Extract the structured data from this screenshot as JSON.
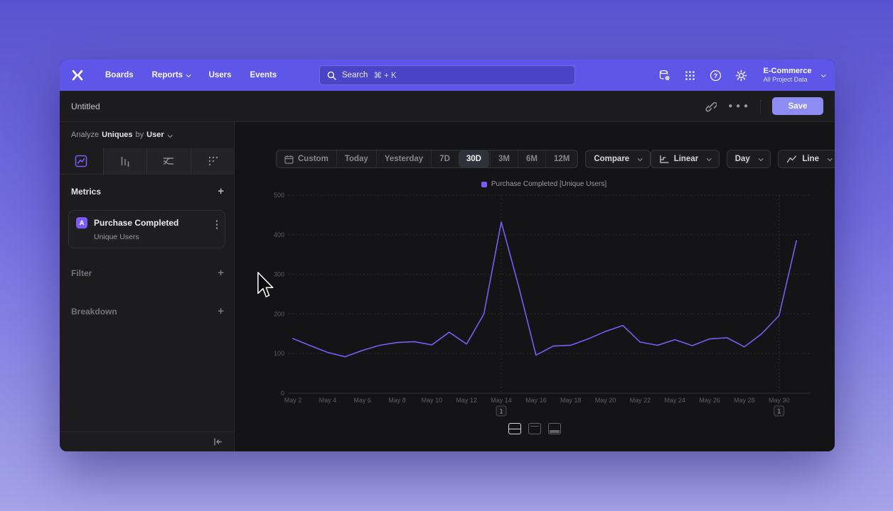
{
  "topnav": {
    "items": [
      "Boards",
      "Reports",
      "Users",
      "Events"
    ],
    "search": {
      "placeholder": "Search",
      "shortcut": "⌘ + K"
    },
    "project": {
      "name": "E-Commerce",
      "scope": "All Project Data"
    }
  },
  "header": {
    "title": "Untitled",
    "save_label": "Save"
  },
  "sidebar": {
    "analyze": {
      "prefix": "Analyze",
      "metric": "Uniques",
      "connector": "by",
      "value": "User"
    },
    "metrics_title": "Metrics",
    "metric_card": {
      "badge": "A",
      "title": "Purchase Completed",
      "subtitle": "Unique Users"
    },
    "filter_title": "Filter",
    "breakdown_title": "Breakdown"
  },
  "toolbar": {
    "date_ranges": [
      "Custom",
      "Today",
      "Yesterday",
      "7D",
      "30D",
      "3M",
      "6M",
      "12M"
    ],
    "selected_range": "30D",
    "compare": "Compare",
    "scale": "Linear",
    "interval": "Day",
    "chart_type": "Line"
  },
  "icons": {
    "topnav_right": [
      "data-connections",
      "apps-grid",
      "help",
      "settings"
    ],
    "header_right": [
      "share-link",
      "more-options"
    ],
    "view_toggles": [
      "split-view",
      "chart-top-view",
      "table-bottom-view"
    ],
    "sidebar_footer": [
      "collapse-sidebar"
    ]
  },
  "chart_data": {
    "type": "line",
    "title": "",
    "legend": [
      "Purchase Completed [Unique Users]"
    ],
    "legend_position": "top",
    "series_color": "#7b5bf7",
    "grid": true,
    "x": [
      "May 2",
      "May 3",
      "May 4",
      "May 5",
      "May 6",
      "May 7",
      "May 8",
      "May 9",
      "May 10",
      "May 11",
      "May 12",
      "May 13",
      "May 14",
      "May 15",
      "May 16",
      "May 17",
      "May 18",
      "May 19",
      "May 20",
      "May 21",
      "May 22",
      "May 23",
      "May 24",
      "May 25",
      "May 26",
      "May 27",
      "May 28",
      "May 29",
      "May 30",
      "May 31"
    ],
    "values": [
      138,
      120,
      103,
      92,
      108,
      121,
      128,
      130,
      122,
      154,
      124,
      200,
      432,
      270,
      96,
      119,
      121,
      137,
      156,
      171,
      129,
      121,
      135,
      120,
      137,
      140,
      117,
      150,
      196,
      385
    ],
    "x_tick_every": 2,
    "ylim": [
      0,
      500
    ],
    "yticks": [
      0,
      100,
      200,
      300,
      400,
      500
    ],
    "annotations": [
      {
        "x": "May 14",
        "label": "1"
      },
      {
        "x": "May 30",
        "label": "1"
      }
    ]
  }
}
